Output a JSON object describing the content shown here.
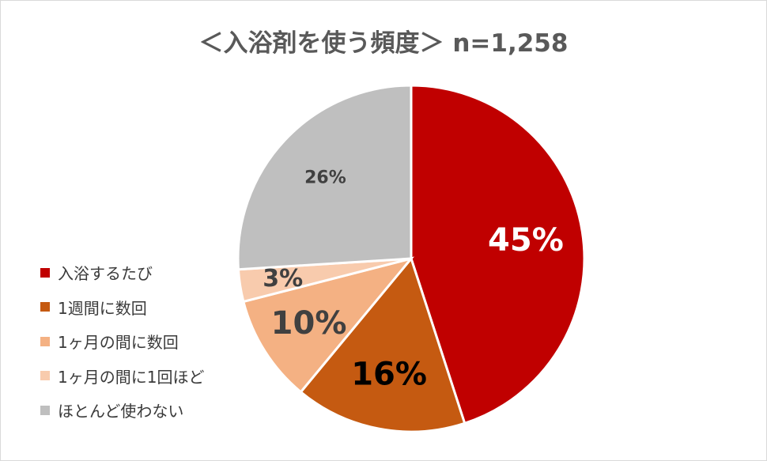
{
  "chart_data": {
    "type": "pie",
    "title": "＜入浴剤を使う頻度＞ n=1,258",
    "legend_position": "left",
    "slices": [
      {
        "name": "入浴するたび",
        "value": 45,
        "label": "45%",
        "color": "#c00000",
        "label_color": "#ffffff",
        "label_size": 40
      },
      {
        "name": "1週間に数回",
        "value": 16,
        "label": "16%",
        "color": "#c55a11",
        "label_color": "#000000",
        "label_size": 40
      },
      {
        "name": "1ヶ月の間に数回",
        "value": 10,
        "label": "10%",
        "color": "#f4b183",
        "label_color": "#404040",
        "label_size": 40
      },
      {
        "name": "1ヶ月の間に1回ほど",
        "value": 3,
        "label": "3%",
        "color": "#f8cbad",
        "label_color": "#404040",
        "label_size": 30
      },
      {
        "name": "ほとんど使わない",
        "value": 26,
        "label": "26%",
        "color": "#bfbfbf",
        "label_color": "#404040",
        "label_size": 22
      }
    ]
  }
}
